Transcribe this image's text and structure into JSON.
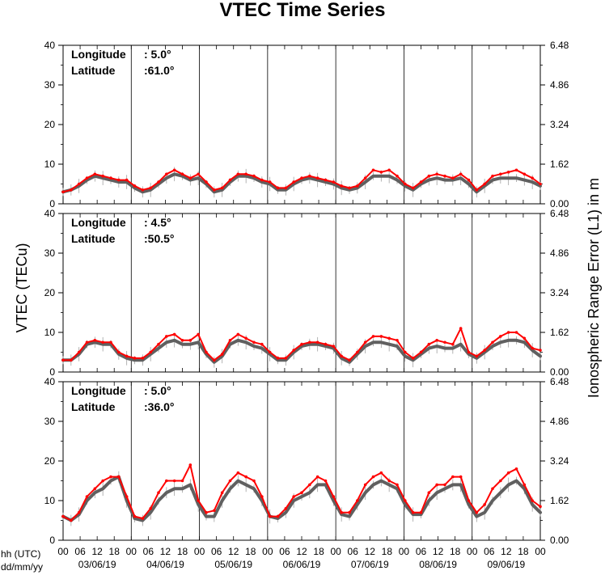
{
  "chart_data": {
    "type": "line",
    "title": "VTEC Time Series",
    "ylabel_left": "VTEC (TECu)",
    "ylabel_right": "Ionospheric Range Error (L1) in m",
    "xlabel_line1": "hh (UTC)",
    "xlabel_line2": "dd/mm/yy",
    "y_ticks_left": [
      "0",
      "10",
      "20",
      "30",
      "40"
    ],
    "y_ticks_right": [
      "0.00",
      "1.62",
      "3.24",
      "4.86",
      "6.48"
    ],
    "ylim": [
      0,
      40
    ],
    "x_hour_ticks": [
      "00",
      "06",
      "12",
      "18",
      "00",
      "06",
      "12",
      "18",
      "00",
      "06",
      "12",
      "18",
      "00",
      "06",
      "12",
      "18",
      "00",
      "06",
      "12",
      "18",
      "00",
      "06",
      "12",
      "18",
      "00",
      "06",
      "12",
      "18",
      "00"
    ],
    "dates": [
      "03/06/19",
      "04/06/19",
      "05/06/19",
      "06/06/19",
      "07/06/19",
      "08/06/19",
      "09/06/19"
    ],
    "series_colors": {
      "measured": "#ff0000",
      "reference": "#606060",
      "error_bar": "#a0a0a0"
    },
    "panels": [
      {
        "longitude_label": "Longitude",
        "longitude_value": ":  5.0°",
        "latitude_label": "Latitude",
        "latitude_value": ":61.0°",
        "red": [
          3,
          3.5,
          5,
          6.5,
          7.5,
          7,
          6.5,
          6,
          6,
          4.5,
          3.5,
          4,
          5.5,
          7.5,
          8.5,
          7.5,
          6.5,
          7.5,
          5.5,
          3.5,
          4,
          6,
          7.5,
          7.5,
          7,
          6,
          5.5,
          4,
          4,
          5.5,
          6.5,
          7,
          6.5,
          6,
          5.5,
          4.5,
          4,
          4.5,
          6.5,
          8.5,
          8,
          8.5,
          7,
          5,
          4,
          5.5,
          7,
          7.5,
          7,
          6.5,
          7.5,
          6,
          3.5,
          5,
          7,
          7.5,
          8,
          8.5,
          7.5,
          6.5,
          5
        ],
        "gray": [
          3,
          3.5,
          4.5,
          6,
          7,
          6.5,
          6,
          5.5,
          5.5,
          4,
          3,
          3.5,
          5,
          6.5,
          7.5,
          7,
          6,
          6.5,
          5,
          3,
          3.5,
          5.5,
          7,
          7,
          6.5,
          5.5,
          5,
          3.5,
          3.5,
          5,
          6,
          6.5,
          6,
          5.5,
          5,
          4,
          3.5,
          4,
          5.5,
          7,
          7,
          7,
          6,
          4.5,
          3.5,
          5,
          6,
          6.5,
          6,
          6,
          6.5,
          5,
          3,
          4.5,
          6,
          6.5,
          6.5,
          6.5,
          6,
          5.5,
          4.5
        ]
      },
      {
        "longitude_label": "Longitude",
        "longitude_value": ":  4.5°",
        "latitude_label": "Latitude",
        "latitude_value": ":50.5°",
        "red": [
          3,
          3,
          5,
          7.5,
          8,
          7.5,
          7.5,
          5,
          4,
          3.5,
          3.5,
          5,
          7,
          9,
          9.5,
          8,
          8,
          9.5,
          5,
          3,
          4.5,
          8,
          9.5,
          8.5,
          7.5,
          7,
          5,
          3.5,
          3.5,
          5.5,
          7,
          7.5,
          7.5,
          7,
          6.5,
          4,
          3,
          5,
          7.5,
          9,
          9,
          8.5,
          8,
          5,
          3.5,
          5,
          7,
          8,
          7.5,
          7,
          11,
          5,
          4,
          5.5,
          7.5,
          9,
          10,
          10,
          8.5,
          6,
          5.5
        ],
        "gray": [
          3,
          3,
          4.5,
          7,
          7.5,
          7,
          7,
          4.5,
          3.5,
          3,
          3,
          4.5,
          6,
          7.5,
          8,
          7,
          7,
          7.5,
          4.5,
          2.5,
          4,
          7,
          8,
          7.5,
          6.5,
          6,
          4.5,
          3,
          3,
          5,
          6.5,
          7,
          7,
          6.5,
          6,
          3.5,
          2.5,
          4.5,
          6.5,
          7.5,
          7.5,
          7,
          6.5,
          4,
          3,
          4.5,
          6,
          6.5,
          6,
          6,
          7,
          4.5,
          3.5,
          5,
          6.5,
          7.5,
          8,
          8,
          7.5,
          5.5,
          4
        ]
      },
      {
        "longitude_label": "Longitude",
        "longitude_value": ":  5.0°",
        "latitude_label": "Latitude",
        "latitude_value": ":36.0°",
        "red": [
          6,
          5,
          7,
          11,
          13,
          15,
          16,
          16,
          11,
          6,
          5.5,
          8,
          12,
          15,
          15,
          15,
          19,
          10,
          7,
          7.5,
          12,
          15,
          17,
          16,
          15,
          11,
          6,
          6,
          8,
          11,
          12,
          14,
          16,
          15,
          11,
          7,
          7,
          10,
          14,
          16,
          17,
          15,
          14,
          10,
          7,
          7,
          12,
          14,
          14,
          16,
          16,
          10,
          7,
          9,
          13,
          15,
          17,
          18,
          14,
          10,
          8.5
        ],
        "gray": [
          6,
          5,
          6.5,
          10,
          12,
          13,
          15,
          16,
          10,
          5.5,
          5,
          7,
          10,
          12,
          13,
          13,
          14,
          9,
          6,
          6,
          10,
          13,
          15,
          14,
          13,
          10,
          6,
          5.5,
          7,
          10,
          11,
          12,
          14,
          14,
          10,
          6.5,
          6,
          9,
          12,
          14,
          15,
          14,
          13,
          9,
          6.5,
          6.5,
          10,
          12,
          13,
          14,
          14,
          9,
          6,
          7,
          10,
          12,
          14,
          15,
          13,
          9,
          7
        ]
      }
    ]
  }
}
